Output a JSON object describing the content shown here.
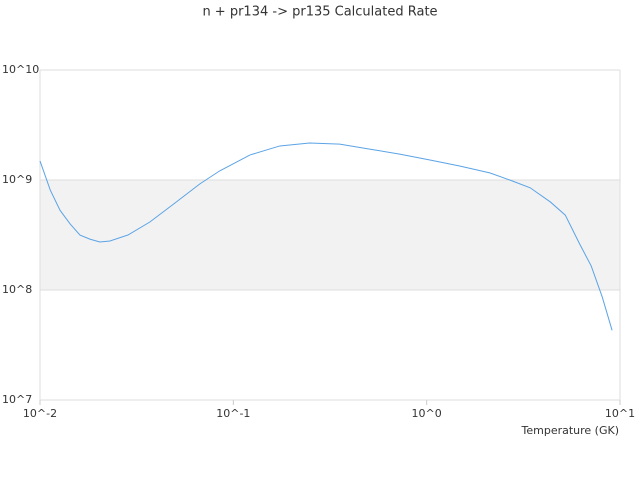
{
  "chart_data": {
    "type": "line",
    "title": "n + pr134 -> pr135 Calculated Rate",
    "x_label": "Temperature (GK)",
    "x": [
      0.01,
      0.0113,
      0.0127,
      0.0143,
      0.0161,
      0.0181,
      0.0204,
      0.023,
      0.0285,
      0.037,
      0.05,
      0.067,
      0.085,
      0.122,
      0.174,
      0.248,
      0.355,
      0.507,
      0.725,
      1.04,
      1.48,
      2.12,
      2.69,
      3.43,
      4.37,
      5.21,
      6.2,
      7.1,
      8.1,
      9.1
    ],
    "series": [
      {
        "name": "n + pr134 -> pr135",
        "color": "#5ba3e6",
        "values": [
          1490000000,
          810000000,
          530000000,
          400000000,
          316000000,
          290000000,
          273000000,
          279000000,
          316000000,
          415000000,
          620000000,
          920000000,
          1210000000,
          1690000000,
          2040000000,
          2170000000,
          2120000000,
          1910000000,
          1720000000,
          1520000000,
          1340000000,
          1160000000,
          1000000000,
          850000000,
          630000000,
          480000000,
          260000000,
          165000000,
          86000000,
          43000000
        ]
      }
    ],
    "xlim": [
      0.01,
      10
    ],
    "ylim": [
      10000000,
      10000000000
    ],
    "xticks": [
      {
        "value": 0.01,
        "label": "10^-2"
      },
      {
        "value": 0.1,
        "label": "10^-1"
      },
      {
        "value": 1,
        "label": "10^0"
      },
      {
        "value": 10,
        "label": "10^1"
      }
    ],
    "yticks": [
      {
        "value": 10000000,
        "label": "10^7"
      },
      {
        "value": 100000000,
        "label": "10^8"
      },
      {
        "value": 1000000000,
        "label": "10^9"
      },
      {
        "value": 10000000000,
        "label": "10^10"
      }
    ],
    "xscale": "log",
    "yscale": "log",
    "grid": true
  }
}
